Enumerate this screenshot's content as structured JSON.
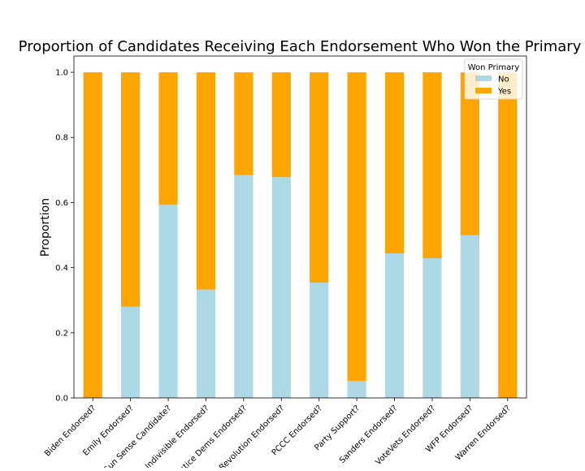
{
  "chart_data": {
    "type": "bar",
    "stacked": true,
    "title": "Proportion of Candidates Receiving Each Endorsement Who Won the Primary",
    "xlabel": "",
    "ylabel": "Proportion",
    "ylim": [
      0,
      1.05
    ],
    "yticks": [
      "0.0",
      "0.2",
      "0.4",
      "0.6",
      "0.8",
      "1.0"
    ],
    "ytick_values": [
      0,
      0.2,
      0.4,
      0.6,
      0.8,
      1.0
    ],
    "grid": false,
    "legend": {
      "title": "Won Primary",
      "placement": "top-right"
    },
    "categories": [
      "Biden Endorsed?",
      "Emily Endorsed?",
      "Gun Sense Candidate?",
      "Indivisible Endorsed?",
      "Justice Dems Endorsed?",
      "Our Revolution Endorsed?",
      "PCCC Endorsed?",
      "Party Support?",
      "Sanders Endorsed?",
      "VoteVets Endorsed?",
      "WFP Endorsed?",
      "Warren Endorsed?"
    ],
    "series": [
      {
        "name": "No",
        "color": "#add8e6",
        "values": [
          0.0,
          0.28,
          0.593,
          0.333,
          0.684,
          0.678,
          0.354,
          0.052,
          0.444,
          0.429,
          0.5,
          0.0
        ]
      },
      {
        "name": "Yes",
        "color": "#ffa500",
        "values": [
          1.0,
          0.72,
          0.407,
          0.667,
          0.316,
          0.322,
          0.646,
          0.948,
          0.556,
          0.571,
          0.5,
          1.0
        ]
      }
    ]
  }
}
